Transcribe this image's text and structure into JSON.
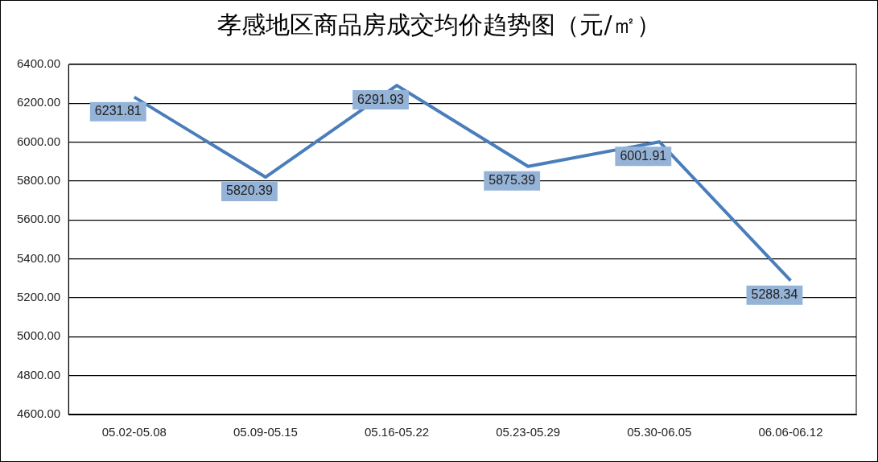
{
  "chart_data": {
    "type": "line",
    "title": "孝感地区商品房成交均价趋势图（元/㎡）",
    "categories": [
      "05.02-05.08",
      "05.09-05.15",
      "05.16-05.22",
      "05.23-05.29",
      "05.30-06.05",
      "06.06-06.12"
    ],
    "series": [
      {
        "color": "#4a7ebb",
        "values": [
          6231.81,
          5820.39,
          6291.93,
          5875.39,
          6001.91,
          5288.34
        ]
      }
    ],
    "ylim": [
      4600,
      6400
    ],
    "yticks": [
      {
        "value": 4600,
        "label": "4600.00"
      },
      {
        "value": 4800,
        "label": "4800.00"
      },
      {
        "value": 5000,
        "label": "5000.00"
      },
      {
        "value": 5200,
        "label": "5200.00"
      },
      {
        "value": 5400,
        "label": "5400.00"
      },
      {
        "value": 5600,
        "label": "5600.00"
      },
      {
        "value": 5800,
        "label": "5800.00"
      },
      {
        "value": 6000,
        "label": "6000.00"
      },
      {
        "value": 6200,
        "label": "6200.00"
      },
      {
        "value": 6400,
        "label": "6400.00"
      }
    ],
    "grid": "y",
    "legend": false,
    "marker": "none",
    "line_style": "solid",
    "data_labels": true
  }
}
